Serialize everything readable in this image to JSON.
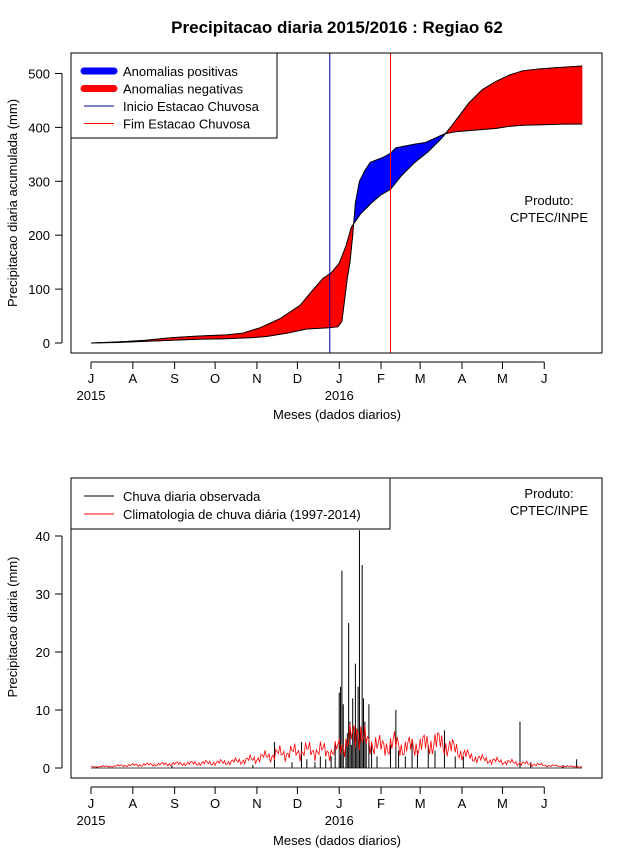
{
  "title": "Precipitacao diaria 2015/2016 : Regiao 62",
  "xlabel": "Meses (dados diarios)",
  "month_ticks": [
    "J",
    "A",
    "S",
    "O",
    "N",
    "D",
    "J",
    "F",
    "M",
    "A",
    "M",
    "J"
  ],
  "year_labels": [
    "2015",
    "2016"
  ],
  "product_line1": "Produto:",
  "product_line2": "CPTEC/INPE",
  "chart_data": [
    {
      "type": "area",
      "ylabel": "Precipitacao diaria acumulada (mm)",
      "ylim": [
        0,
        520
      ],
      "yticks": [
        0,
        100,
        200,
        300,
        400,
        500
      ],
      "x_unit": "days since 2015-07-01",
      "xlim": [
        0,
        365
      ],
      "legend": [
        "Anomalias positivas",
        "Anomalias negativas",
        "Inicio Estacao Chuvosa",
        "Fim Estacao Chuvosa"
      ],
      "colors": {
        "positive": "#0000ff",
        "negative": "#ff0000",
        "inicio": "#00008b",
        "fim": "#ff0000"
      },
      "inicio_estacao_chuvosa_day": 177,
      "fim_estacao_chuvosa_day": 222,
      "observed_cumulative": [
        [
          0,
          0
        ],
        [
          20,
          1
        ],
        [
          40,
          3
        ],
        [
          60,
          5
        ],
        [
          80,
          7
        ],
        [
          100,
          8
        ],
        [
          120,
          10
        ],
        [
          130,
          12
        ],
        [
          145,
          18
        ],
        [
          160,
          26
        ],
        [
          175,
          28
        ],
        [
          183,
          30
        ],
        [
          186,
          40
        ],
        [
          188,
          80
        ],
        [
          190,
          120
        ],
        [
          192,
          150
        ],
        [
          194,
          200
        ],
        [
          196,
          260
        ],
        [
          199,
          300
        ],
        [
          203,
          320
        ],
        [
          207,
          335
        ],
        [
          212,
          340
        ],
        [
          217,
          345
        ],
        [
          222,
          352
        ],
        [
          226,
          362
        ],
        [
          232,
          365
        ],
        [
          240,
          369
        ],
        [
          248,
          372
        ],
        [
          255,
          380
        ],
        [
          262,
          388
        ],
        [
          270,
          392
        ],
        [
          280,
          394
        ],
        [
          290,
          396
        ],
        [
          300,
          398
        ],
        [
          310,
          402
        ],
        [
          320,
          404
        ],
        [
          335,
          405
        ],
        [
          350,
          406
        ],
        [
          364,
          406
        ]
      ],
      "climatology_cumulative": [
        [
          0,
          0
        ],
        [
          20,
          2
        ],
        [
          40,
          5
        ],
        [
          60,
          10
        ],
        [
          80,
          13
        ],
        [
          100,
          15
        ],
        [
          112,
          18
        ],
        [
          125,
          28
        ],
        [
          140,
          45
        ],
        [
          155,
          70
        ],
        [
          165,
          100
        ],
        [
          172,
          120
        ],
        [
          178,
          130
        ],
        [
          184,
          148
        ],
        [
          189,
          180
        ],
        [
          193,
          215
        ],
        [
          200,
          240
        ],
        [
          208,
          260
        ],
        [
          215,
          275
        ],
        [
          222,
          285
        ],
        [
          230,
          310
        ],
        [
          240,
          335
        ],
        [
          250,
          355
        ],
        [
          260,
          380
        ],
        [
          268,
          405
        ],
        [
          280,
          445
        ],
        [
          290,
          470
        ],
        [
          300,
          485
        ],
        [
          310,
          497
        ],
        [
          320,
          505
        ],
        [
          330,
          508
        ],
        [
          345,
          511
        ],
        [
          364,
          514
        ]
      ]
    },
    {
      "type": "bar",
      "ylabel": "Precipitacao diaria (mm)",
      "ylim": [
        0,
        42
      ],
      "yticks": [
        0,
        10,
        20,
        30,
        40
      ],
      "x_unit": "days since 2015-07-01",
      "xlim": [
        0,
        365
      ],
      "legend": [
        "Chuva diaria observada",
        "Climatologia de chuva diária (1997-2014)"
      ],
      "colors": {
        "observed": "#000000",
        "climatology": "#ff0000"
      },
      "observed_daily": [
        [
          4,
          0.3
        ],
        [
          60,
          0.4
        ],
        [
          120,
          0.5
        ],
        [
          136,
          4.5
        ],
        [
          149,
          1.0
        ],
        [
          156,
          4.5
        ],
        [
          160,
          1.5
        ],
        [
          166,
          1.0
        ],
        [
          170,
          2.0
        ],
        [
          174,
          1.5
        ],
        [
          178,
          2.0
        ],
        [
          181,
          4.0
        ],
        [
          184,
          13.0
        ],
        [
          185,
          14.0
        ],
        [
          186,
          34.0
        ],
        [
          187,
          11.0
        ],
        [
          189,
          5.0
        ],
        [
          190,
          6.0
        ],
        [
          191,
          25.0
        ],
        [
          192,
          8.0
        ],
        [
          193,
          4.0
        ],
        [
          194,
          12.0
        ],
        [
          195,
          7.0
        ],
        [
          196,
          18.0
        ],
        [
          197,
          6.0
        ],
        [
          198,
          14.0
        ],
        [
          199,
          41.0
        ],
        [
          200,
          6.0
        ],
        [
          201,
          35.0
        ],
        [
          202,
          12.0
        ],
        [
          203,
          8.0
        ],
        [
          204,
          5.0
        ],
        [
          206,
          11.0
        ],
        [
          208,
          4.0
        ],
        [
          212,
          2.0
        ],
        [
          222,
          4.0
        ],
        [
          226,
          10.0
        ],
        [
          228,
          3.0
        ],
        [
          233,
          2.0
        ],
        [
          238,
          5.0
        ],
        [
          242,
          3.0
        ],
        [
          250,
          4.0
        ],
        [
          255,
          3.0
        ],
        [
          262,
          6.5
        ],
        [
          270,
          2.0
        ],
        [
          276,
          2.0
        ],
        [
          318,
          8.0
        ],
        [
          326,
          1.0
        ],
        [
          350,
          0.5
        ],
        [
          360,
          1.5
        ]
      ],
      "climatology_daily": [
        [
          0,
          0.2
        ],
        [
          15,
          0.3
        ],
        [
          30,
          0.5
        ],
        [
          45,
          0.6
        ],
        [
          60,
          0.7
        ],
        [
          75,
          0.8
        ],
        [
          90,
          0.9
        ],
        [
          100,
          1.0
        ],
        [
          110,
          1.2
        ],
        [
          120,
          1.5
        ],
        [
          130,
          2.0
        ],
        [
          140,
          2.5
        ],
        [
          150,
          2.7
        ],
        [
          160,
          3.0
        ],
        [
          170,
          3.0
        ],
        [
          180,
          2.8
        ],
        [
          185,
          3.8
        ],
        [
          190,
          4.5
        ],
        [
          195,
          5.5
        ],
        [
          198,
          7.0
        ],
        [
          202,
          5.0
        ],
        [
          206,
          4.0
        ],
        [
          210,
          4.5
        ],
        [
          215,
          3.5
        ],
        [
          220,
          4.0
        ],
        [
          225,
          4.2
        ],
        [
          232,
          3.5
        ],
        [
          240,
          3.8
        ],
        [
          248,
          4.0
        ],
        [
          255,
          4.5
        ],
        [
          262,
          4.0
        ],
        [
          270,
          3.2
        ],
        [
          280,
          2.0
        ],
        [
          290,
          1.5
        ],
        [
          300,
          1.2
        ],
        [
          310,
          1.0
        ],
        [
          320,
          0.8
        ],
        [
          330,
          0.6
        ],
        [
          340,
          0.4
        ],
        [
          350,
          0.3
        ],
        [
          364,
          0.2
        ]
      ]
    }
  ]
}
